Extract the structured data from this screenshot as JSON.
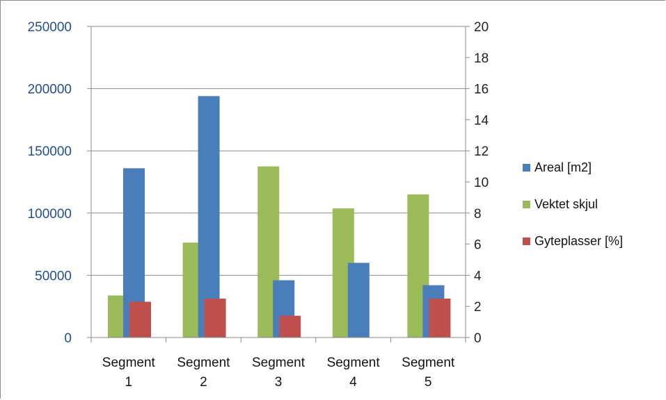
{
  "chart_data": {
    "type": "bar",
    "title": "",
    "categories": [
      [
        "Segment",
        "1"
      ],
      [
        "Segment",
        "2"
      ],
      [
        "Segment",
        "3"
      ],
      [
        "Segment",
        "4"
      ],
      [
        "Segment",
        "5"
      ]
    ],
    "y_left": {
      "min": 0,
      "max": 250000,
      "ticks": [
        "0",
        "50000",
        "100000",
        "150000",
        "200000",
        "250000"
      ]
    },
    "y_right": {
      "min": 0,
      "max": 20,
      "ticks": [
        "0",
        "2",
        "4",
        "6",
        "8",
        "10",
        "12",
        "14",
        "16",
        "18",
        "20"
      ]
    },
    "grid": true,
    "legend_position": "right",
    "series": [
      {
        "name": "Areal [m2]",
        "axis": "left",
        "color": "#4a7ebb",
        "values": [
          136000,
          194000,
          46000,
          60000,
          42000
        ]
      },
      {
        "name": "Vektet skjul",
        "axis": "right",
        "color": "#9bbb59",
        "values": [
          2.7,
          6.1,
          11.0,
          8.3,
          9.2
        ]
      },
      {
        "name": "Gyteplasser [%]",
        "axis": "right",
        "color": "#c0504d",
        "values": [
          2.3,
          2.5,
          1.4,
          0,
          2.5
        ]
      }
    ]
  }
}
